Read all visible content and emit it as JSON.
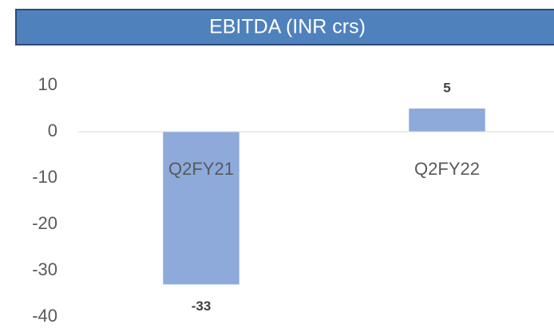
{
  "chart_data": {
    "type": "bar",
    "title": "EBITDA (INR crs)",
    "categories": [
      "Q2FY21",
      "Q2FY22"
    ],
    "values": [
      -33,
      5
    ],
    "color": "#8eaadb",
    "ylim": [
      -40,
      10
    ],
    "yticks": [
      -40,
      -30,
      -20,
      -10,
      0,
      10
    ],
    "grid": false
  }
}
